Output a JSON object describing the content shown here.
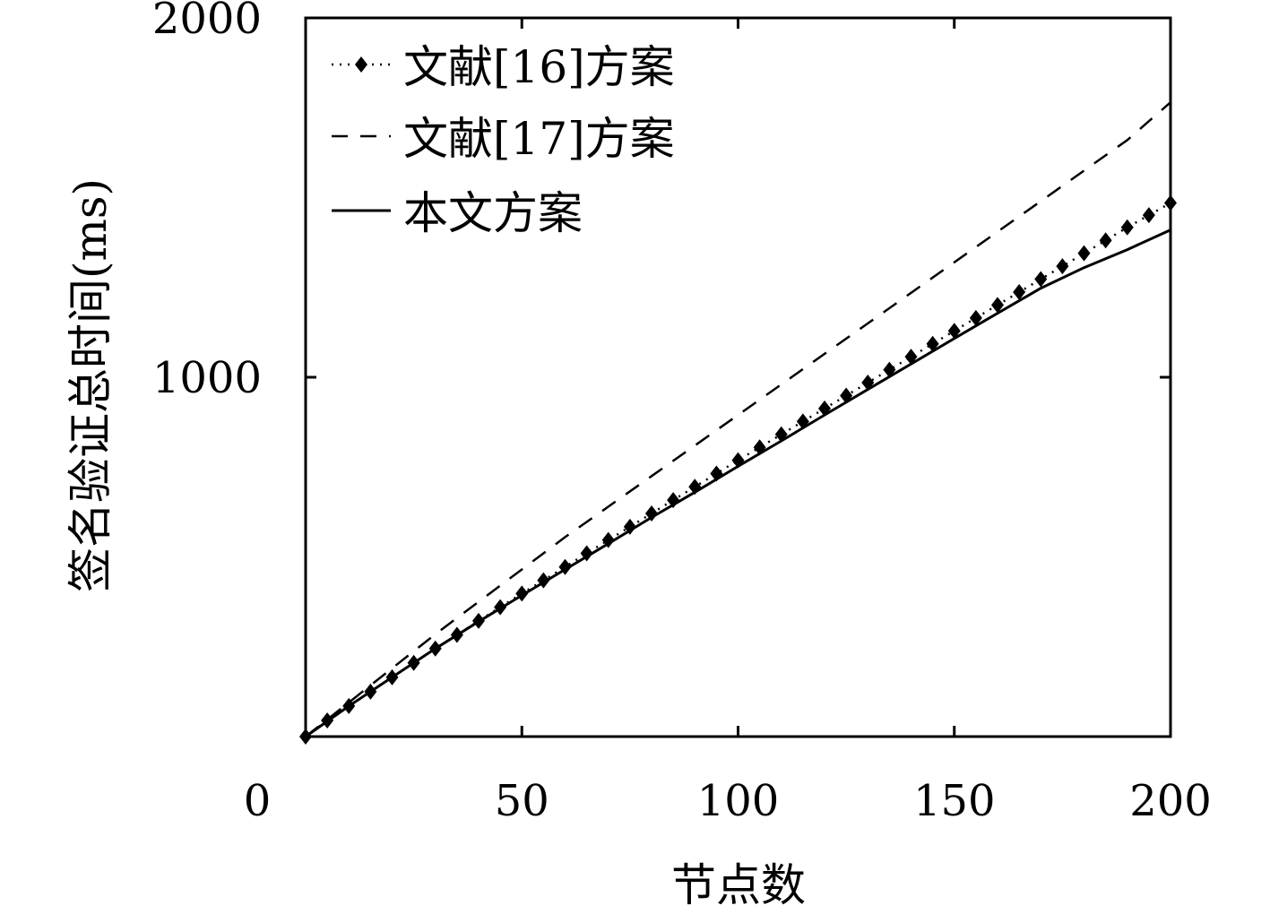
{
  "chart_data": {
    "type": "line",
    "title": "",
    "xlabel": "节点数",
    "ylabel": "签名验证总时间(ms)",
    "xlim": [
      0,
      200
    ],
    "ylim": [
      0,
      2000
    ],
    "x_ticks": [
      0,
      50,
      100,
      150,
      200
    ],
    "y_ticks": [
      1000,
      2000
    ],
    "x_tick_labels": [
      "0",
      "50",
      "100",
      "150",
      "200"
    ],
    "y_tick_labels": [
      "1000",
      "2000"
    ],
    "grid": false,
    "legend_position": "top-left",
    "series": [
      {
        "name": "文献[16]方案",
        "style": "dotted-diamond",
        "color": "#000000",
        "x": [
          0,
          5,
          10,
          15,
          20,
          25,
          30,
          35,
          40,
          45,
          50,
          55,
          60,
          65,
          70,
          75,
          80,
          85,
          90,
          95,
          100,
          105,
          110,
          115,
          120,
          125,
          130,
          135,
          140,
          145,
          150,
          155,
          160,
          165,
          170,
          175,
          180,
          185,
          190,
          195,
          200
        ],
        "y": [
          0,
          45,
          85,
          125,
          165,
          205,
          245,
          283,
          322,
          360,
          398,
          435,
          472,
          510,
          547,
          584,
          621,
          658,
          695,
          732,
          769,
          805,
          841,
          877,
          913,
          949,
          985,
          1021,
          1057,
          1093,
          1129,
          1165,
          1201,
          1237,
          1273,
          1309,
          1345,
          1381,
          1417,
          1451,
          1485
        ]
      },
      {
        "name": "文献[17]方案",
        "style": "dashed",
        "color": "#000000",
        "x": [
          0,
          10,
          20,
          30,
          40,
          50,
          60,
          70,
          80,
          90,
          100,
          110,
          120,
          130,
          140,
          150,
          160,
          170,
          180,
          190,
          200
        ],
        "y": [
          0,
          95,
          190,
          285,
          375,
          465,
          555,
          640,
          725,
          810,
          895,
          980,
          1065,
          1150,
          1235,
          1320,
          1405,
          1490,
          1575,
          1660,
          1765
        ]
      },
      {
        "name": "本文方案",
        "style": "solid",
        "color": "#000000",
        "x": [
          0,
          10,
          20,
          30,
          40,
          50,
          60,
          70,
          80,
          90,
          100,
          110,
          120,
          130,
          140,
          150,
          160,
          170,
          180,
          190,
          200
        ],
        "y": [
          0,
          85,
          165,
          245,
          320,
          393,
          465,
          537,
          610,
          680,
          752,
          823,
          895,
          966,
          1037,
          1108,
          1178,
          1248,
          1305,
          1355,
          1410
        ]
      }
    ]
  }
}
